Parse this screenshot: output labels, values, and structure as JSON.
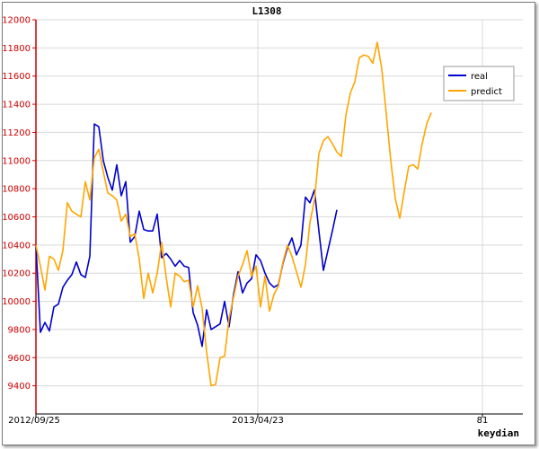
{
  "chart_data": {
    "type": "line",
    "title": "L1308",
    "xlabel": "keydian",
    "ylabel": "",
    "ylim": [
      9200,
      12000
    ],
    "yticks": [
      "9400",
      "9600",
      "9800",
      "10000",
      "10200",
      "10400",
      "10600",
      "10800",
      "11000",
      "11200",
      "11400",
      "11600",
      "11800",
      "12000"
    ],
    "xticks": [
      "2012/09/25",
      "2013/04/23",
      "81"
    ],
    "grid": true,
    "legend_position": "top-right",
    "colors": {
      "real": "#0000cc",
      "predict": "#ffa500",
      "axis": "#cc0000"
    },
    "series": [
      {
        "name": "real",
        "values": [
          10400,
          9780,
          9850,
          9790,
          9960,
          9980,
          10100,
          10150,
          10190,
          10280,
          10190,
          10170,
          10320,
          11260,
          11240,
          11000,
          10880,
          10790,
          10970,
          10750,
          10850,
          10420,
          10460,
          10640,
          10510,
          10500,
          10500,
          10620,
          10310,
          10340,
          10300,
          10250,
          10290,
          10250,
          10240,
          9920,
          9830,
          9680,
          9940,
          9800,
          9820,
          9840,
          10000,
          9820,
          10050,
          10210,
          10060,
          10130,
          10160,
          10330,
          10290,
          10200,
          10130,
          10100,
          10120,
          10270,
          10380,
          10450,
          10330,
          10400,
          10740,
          10700,
          10790,
          10500,
          10220,
          10360,
          10500,
          10650
        ]
      },
      {
        "name": "predict",
        "values": [
          10400,
          10250,
          10080,
          10320,
          10300,
          10220,
          10360,
          10700,
          10640,
          10620,
          10600,
          10850,
          10720,
          11020,
          11080,
          10920,
          10770,
          10750,
          10720,
          10570,
          10620,
          10460,
          10480,
          10300,
          10020,
          10200,
          10060,
          10200,
          10420,
          10170,
          9960,
          10200,
          10180,
          10140,
          10150,
          9960,
          10110,
          9950,
          9640,
          9400,
          9410,
          9600,
          9610,
          9880,
          10030,
          10180,
          10260,
          10360,
          10180,
          10250,
          9960,
          10180,
          9930,
          10050,
          10110,
          10280,
          10400,
          10320,
          10210,
          10100,
          10260,
          10560,
          10720,
          11050,
          11140,
          11170,
          11120,
          11060,
          11030,
          11320,
          11480,
          11560,
          11730,
          11750,
          11740,
          11690,
          11840,
          11650,
          11330,
          11000,
          10730,
          10590,
          10780,
          10960,
          10970,
          10940,
          11120,
          11260,
          11340
        ]
      }
    ]
  }
}
